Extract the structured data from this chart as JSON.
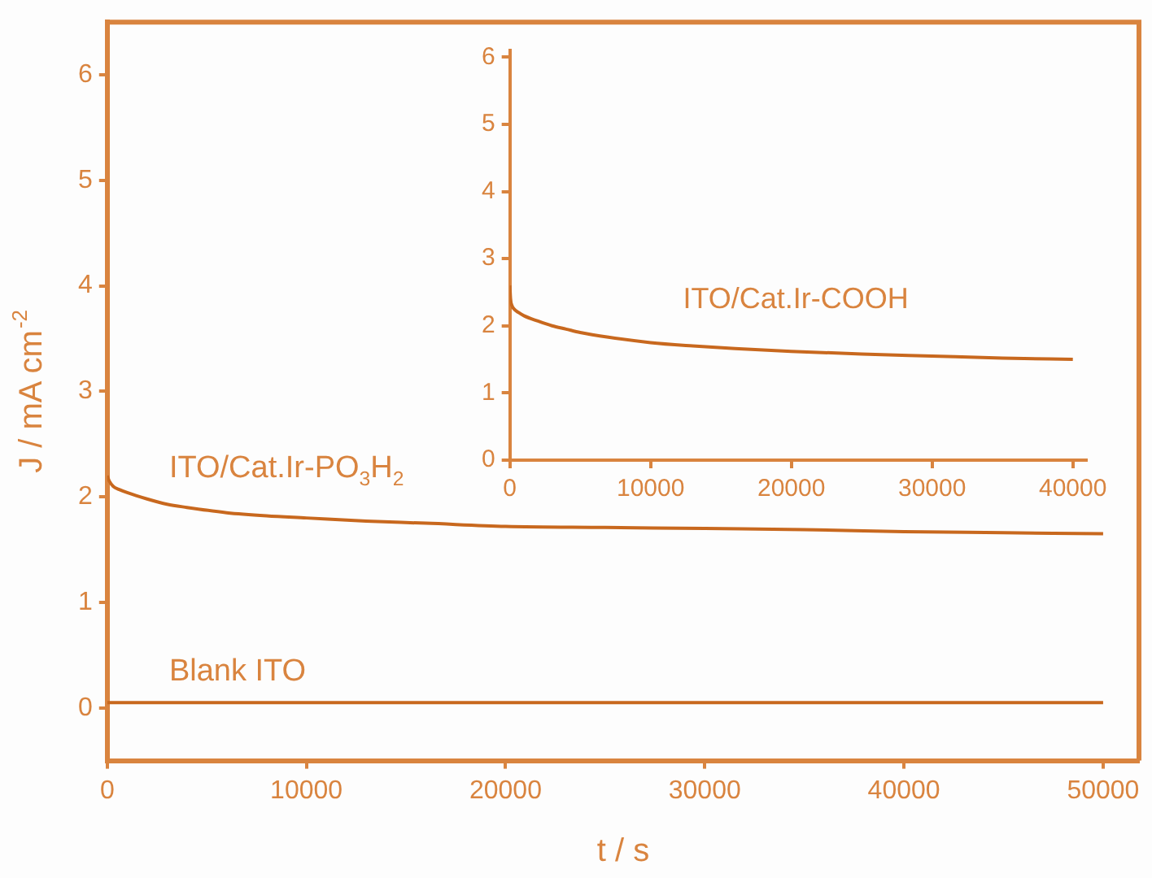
{
  "chart_data": [
    {
      "type": "line",
      "xlabel": "t / s",
      "ylabel": "J / mA cm$^{-2}$",
      "xlim": [
        0,
        51800
      ],
      "xticks": [
        0,
        10000,
        20000,
        30000,
        40000,
        50000
      ],
      "ylim": [
        -0.5,
        6.5
      ],
      "yticks": [
        0,
        1,
        2,
        3,
        4,
        5,
        6
      ],
      "grid": false,
      "legend": false,
      "marker": "none",
      "line_style": "solid",
      "series": [
        {
          "color": "#c8681e",
          "x": [
            0,
            100,
            300,
            600,
            1000,
            2000,
            3000,
            4000,
            6000,
            8000,
            10000,
            13000,
            16000,
            20000,
            25000,
            30000,
            35000,
            40000,
            45000,
            50000
          ],
          "values": [
            2.2,
            2.15,
            2.1,
            2.07,
            2.04,
            1.98,
            1.93,
            1.9,
            1.85,
            1.82,
            1.8,
            1.77,
            1.75,
            1.72,
            1.71,
            1.7,
            1.69,
            1.67,
            1.66,
            1.65
          ]
        },
        {
          "color": "#c8681e",
          "x": [
            0,
            50000
          ],
          "values": [
            0.05,
            0.05
          ]
        }
      ],
      "annotations": [
        "ITO/Cat.Ir-PO$_{3}$H$_{2}$",
        "Blank ITO"
      ]
    },
    {
      "type": "line",
      "xlim": [
        0,
        41000
      ],
      "xticks": [
        0,
        10000,
        20000,
        30000,
        40000
      ],
      "ylim": [
        0,
        6.1
      ],
      "yticks": [
        0,
        1,
        2,
        3,
        4,
        5,
        6
      ],
      "grid": false,
      "legend": false,
      "marker": "none",
      "line_style": "solid",
      "series": [
        {
          "color": "#c8681e",
          "x": [
            0,
            50,
            150,
            300,
            600,
            1000,
            2000,
            3000,
            4000,
            5000,
            7000,
            10000,
            13000,
            16000,
            20000,
            25000,
            30000,
            35000,
            40000
          ],
          "values": [
            2.6,
            2.4,
            2.3,
            2.25,
            2.2,
            2.15,
            2.07,
            2.0,
            1.95,
            1.9,
            1.83,
            1.75,
            1.7,
            1.66,
            1.62,
            1.58,
            1.55,
            1.52,
            1.5
          ]
        }
      ],
      "annotations": [
        "ITO/Cat.Ir-COOH"
      ]
    }
  ]
}
